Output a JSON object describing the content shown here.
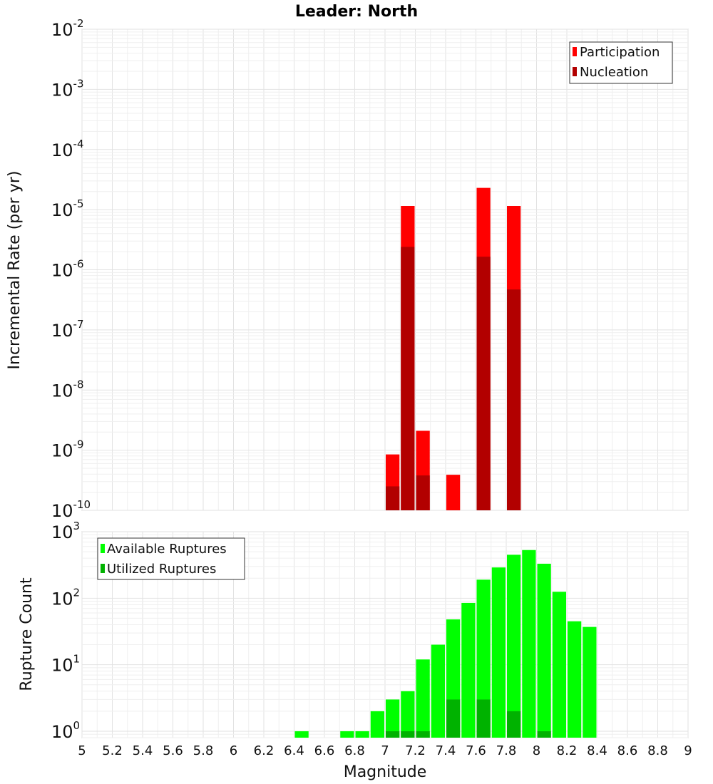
{
  "chart_data": [
    {
      "type": "bar",
      "title": "Leader: North",
      "xlabel": "",
      "ylabel": "Incremental Rate (per yr)",
      "xlim": [
        5,
        9
      ],
      "ylim": [
        1e-10,
        0.01
      ],
      "yscale": "log",
      "grid": true,
      "bar_width": 0.1,
      "legend": {
        "placement": "top-right"
      },
      "series": [
        {
          "name": "Participation",
          "color": "#ff0000",
          "x": [
            7.05,
            7.15,
            7.25,
            7.45,
            7.65,
            7.85
          ],
          "values": [
            8.5e-10,
            1.15e-05,
            2.1e-09,
            3.9e-10,
            2.3e-05,
            1.15e-05
          ]
        },
        {
          "name": "Nucleation",
          "color": "#b20000",
          "x": [
            7.05,
            7.15,
            7.25,
            7.65,
            7.85
          ],
          "values": [
            2.5e-10,
            2.4e-06,
            3.8e-10,
            1.65e-06,
            4.7e-07
          ]
        }
      ],
      "ytick_labels": [
        {
          "base": "10",
          "exp": "-10"
        },
        {
          "base": "10",
          "exp": "-9"
        },
        {
          "base": "10",
          "exp": "-8"
        },
        {
          "base": "10",
          "exp": "-7"
        },
        {
          "base": "10",
          "exp": "-6"
        },
        {
          "base": "10",
          "exp": "-5"
        },
        {
          "base": "10",
          "exp": "-4"
        },
        {
          "base": "10",
          "exp": "-3"
        },
        {
          "base": "10",
          "exp": "-2"
        }
      ]
    },
    {
      "type": "bar",
      "title": "",
      "xlabel": "Magnitude",
      "ylabel": "Rupture Count",
      "xlim": [
        5,
        9
      ],
      "ylim": [
        0.8,
        1000
      ],
      "yscale": "log",
      "grid": true,
      "bar_width": 0.1,
      "legend": {
        "placement": "top-left"
      },
      "series": [
        {
          "name": "Available Ruptures",
          "color": "#00ff00",
          "x": [
            6.45,
            6.75,
            6.85,
            6.95,
            7.05,
            7.15,
            7.25,
            7.35,
            7.45,
            7.55,
            7.65,
            7.75,
            7.85,
            7.95,
            8.05,
            8.15,
            8.25,
            8.35
          ],
          "values": [
            1,
            1,
            1,
            2,
            3,
            4,
            12,
            20,
            48,
            85,
            190,
            290,
            450,
            530,
            330,
            125,
            45,
            37
          ]
        },
        {
          "name": "Utilized Ruptures",
          "color": "#00b200",
          "x": [
            7.05,
            7.15,
            7.25,
            7.45,
            7.65,
            7.85,
            8.05
          ],
          "values": [
            1,
            1,
            1,
            3,
            3,
            2,
            1
          ]
        }
      ],
      "ytick_labels": [
        {
          "base": "10",
          "exp": "0"
        },
        {
          "base": "10",
          "exp": "1"
        },
        {
          "base": "10",
          "exp": "2"
        },
        {
          "base": "10",
          "exp": "3"
        }
      ],
      "xtick_labels": [
        "5",
        "5.2",
        "5.4",
        "5.6",
        "5.8",
        "6",
        "6.2",
        "6.4",
        "6.6",
        "6.8",
        "7",
        "7.2",
        "7.4",
        "7.6",
        "7.8",
        "8",
        "8.2",
        "8.4",
        "8.6",
        "8.8",
        "9"
      ]
    }
  ]
}
